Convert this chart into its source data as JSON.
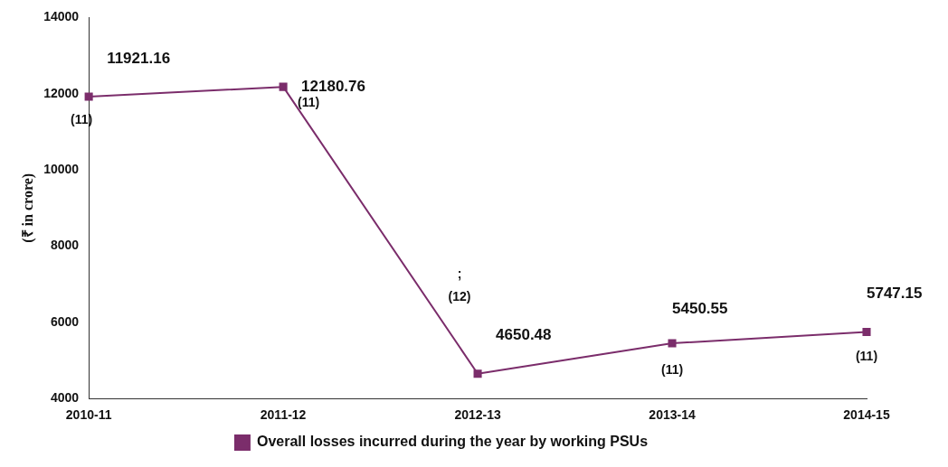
{
  "chart_data": {
    "type": "line",
    "ylabel": "(₹ in crore)",
    "categories": [
      "2010-11",
      "2011-12",
      "2012-13",
      "2013-14",
      "2014-15"
    ],
    "series": [
      {
        "name": "Overall losses incurred during the year by working PSUs",
        "color": "#7b2d6b",
        "values": [
          11921.16,
          12180.76,
          4650.48,
          5450.55,
          5747.15
        ]
      }
    ],
    "ylim": [
      4000,
      14000
    ],
    "yticks": [
      4000,
      6000,
      8000,
      10000,
      12000,
      14000
    ],
    "grid": false,
    "legend": "bottom",
    "marker": "square",
    "line_style": "solid",
    "data_labels": true,
    "annotations": [
      "(11)",
      "(11)",
      ";",
      "(12)",
      "(11)",
      "(11)"
    ]
  }
}
